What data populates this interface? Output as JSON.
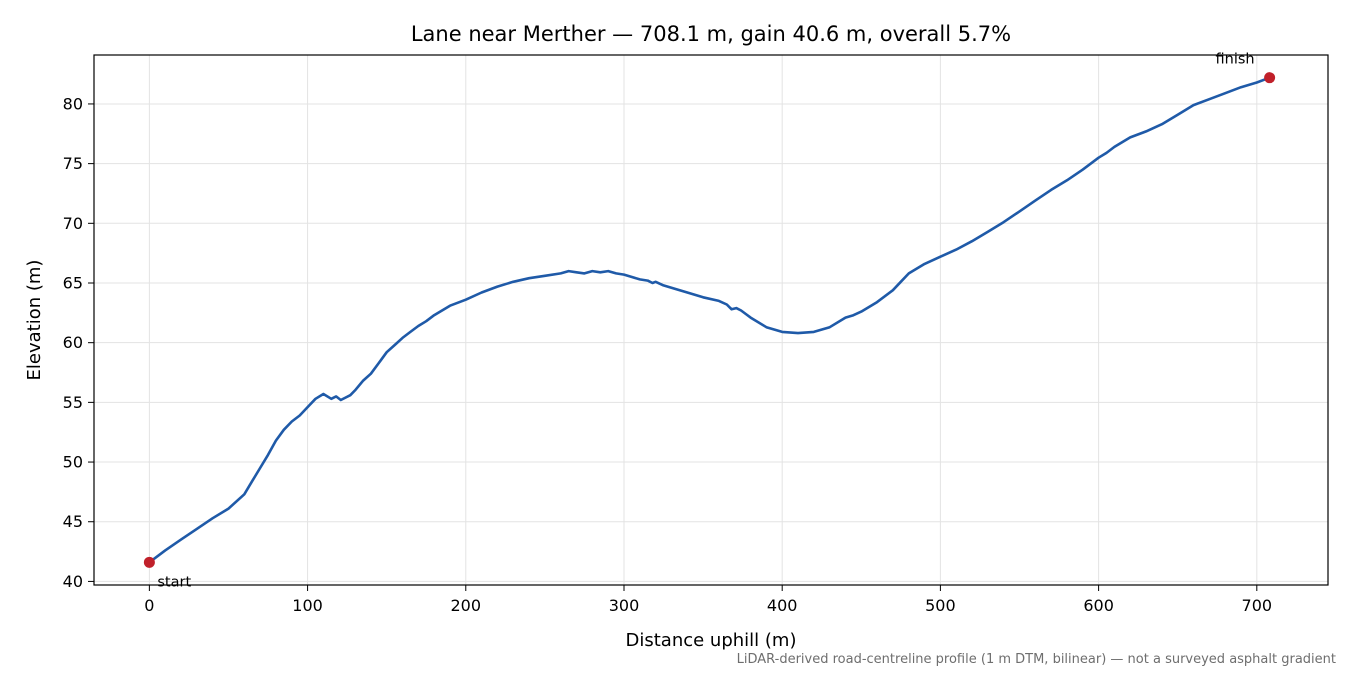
{
  "chart_data": {
    "type": "line",
    "title": "Lane near Merther — 708.1 m, gain 40.6 m, overall 5.7%",
    "xlabel": "Distance uphill (m)",
    "ylabel": "Elevation (m)",
    "xlim": [
      -35,
      745
    ],
    "ylim": [
      39.7,
      84.1
    ],
    "xticks": [
      0,
      100,
      200,
      300,
      400,
      500,
      600,
      700
    ],
    "yticks": [
      40,
      45,
      50,
      55,
      60,
      65,
      70,
      75,
      80
    ],
    "grid": true,
    "series": [
      {
        "color": "#1f5aa8",
        "x": [
          0,
          10,
          20,
          30,
          40,
          50,
          60,
          65,
          70,
          75,
          80,
          85,
          90,
          95,
          100,
          105,
          110,
          115,
          118,
          121,
          124,
          127,
          130,
          135,
          140,
          145,
          150,
          155,
          160,
          165,
          170,
          175,
          180,
          190,
          200,
          210,
          220,
          230,
          240,
          250,
          260,
          265,
          270,
          275,
          280,
          285,
          290,
          295,
          300,
          305,
          310,
          315,
          318,
          320,
          325,
          330,
          340,
          350,
          360,
          365,
          368,
          371,
          374,
          377,
          380,
          390,
          400,
          410,
          420,
          430,
          440,
          445,
          450,
          460,
          470,
          475,
          480,
          490,
          500,
          510,
          520,
          530,
          540,
          550,
          560,
          570,
          580,
          590,
          600,
          605,
          610,
          620,
          630,
          640,
          650,
          660,
          670,
          680,
          690,
          700,
          708.1
        ],
        "values": [
          41.6,
          42.6,
          43.5,
          44.4,
          45.3,
          46.1,
          47.3,
          48.4,
          49.5,
          50.6,
          51.8,
          52.7,
          53.4,
          53.9,
          54.6,
          55.3,
          55.7,
          55.3,
          55.5,
          55.2,
          55.4,
          55.6,
          56.0,
          56.8,
          57.4,
          58.3,
          59.2,
          59.8,
          60.4,
          60.9,
          61.4,
          61.8,
          62.3,
          63.1,
          63.6,
          64.2,
          64.7,
          65.1,
          65.4,
          65.6,
          65.8,
          66.0,
          65.9,
          65.8,
          66.0,
          65.9,
          66.0,
          65.8,
          65.7,
          65.5,
          65.3,
          65.2,
          65.0,
          65.1,
          64.8,
          64.6,
          64.2,
          63.8,
          63.5,
          63.2,
          62.8,
          62.9,
          62.7,
          62.4,
          62.1,
          61.3,
          60.9,
          60.8,
          60.9,
          61.3,
          62.1,
          62.3,
          62.6,
          63.4,
          64.4,
          65.1,
          65.8,
          66.6,
          67.2,
          67.8,
          68.5,
          69.3,
          70.1,
          71.0,
          71.9,
          72.8,
          73.6,
          74.5,
          75.5,
          75.9,
          76.4,
          77.2,
          77.7,
          78.3,
          79.1,
          79.9,
          80.4,
          80.9,
          81.4,
          81.8,
          82.2
        ]
      }
    ],
    "endpoints": [
      {
        "label": "start",
        "x": 0,
        "y": 41.6,
        "color": "#c0202a"
      },
      {
        "label": "finish",
        "x": 708.1,
        "y": 82.2,
        "color": "#c0202a"
      }
    ],
    "footnote": "LiDAR-derived road-centreline profile (1 m DTM, bilinear) — not a surveyed asphalt gradient"
  }
}
